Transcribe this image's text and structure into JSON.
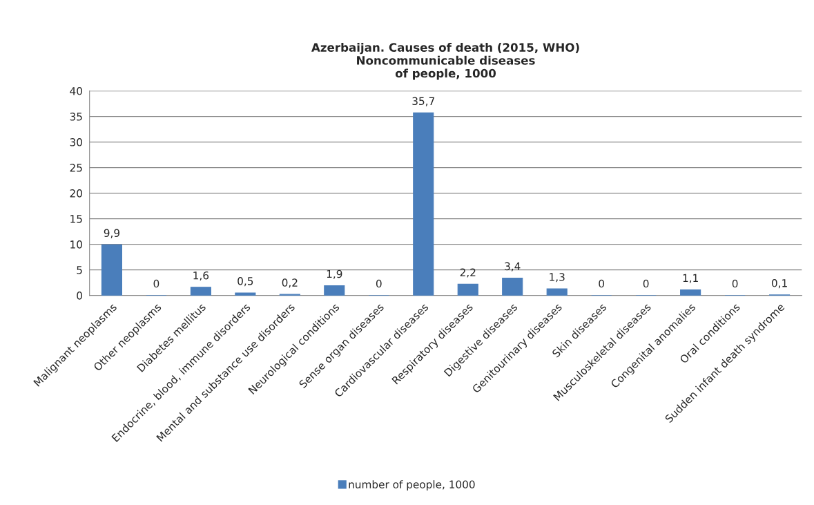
{
  "chart_data": {
    "type": "bar",
    "title": "Azerbaijan. Causes of death (2015, WHO)\nNoncommunicable diseases\nof people, 1000",
    "categories": [
      "Malignant neoplasms",
      "Other neoplasms",
      "Diabetes mellitus",
      "Endocrine, blood, immune disorders",
      "Mental and substance use disorders",
      "Neurological conditions",
      "Sense organ diseases",
      "Cardiovascular diseases",
      "Respiratory diseases",
      "Digestive diseases",
      "Genitourinary diseases",
      "Skin diseases",
      "Musculoskeletal diseases",
      "Congenital anomalies",
      "Oral conditions",
      "Sudden infant death syndrome"
    ],
    "series": [
      {
        "name": "number of people, 1000",
        "color": "#4a7ebb",
        "values": [
          9.9,
          0,
          1.6,
          0.5,
          0.2,
          1.9,
          0,
          35.7,
          2.2,
          3.4,
          1.3,
          0,
          0,
          1.1,
          0,
          0.1
        ],
        "value_labels": [
          "9,9",
          "0",
          "1,6",
          "0,5",
          "0,2",
          "1,9",
          "0",
          "35,7",
          "2,2",
          "3,4",
          "1,3",
          "0",
          "0",
          "1,1",
          "0",
          "0,1"
        ]
      }
    ],
    "ylim": [
      0,
      40
    ],
    "yticks": [
      0,
      5,
      10,
      15,
      20,
      25,
      30,
      35,
      40
    ],
    "grid": "y",
    "legend": "bottom"
  }
}
